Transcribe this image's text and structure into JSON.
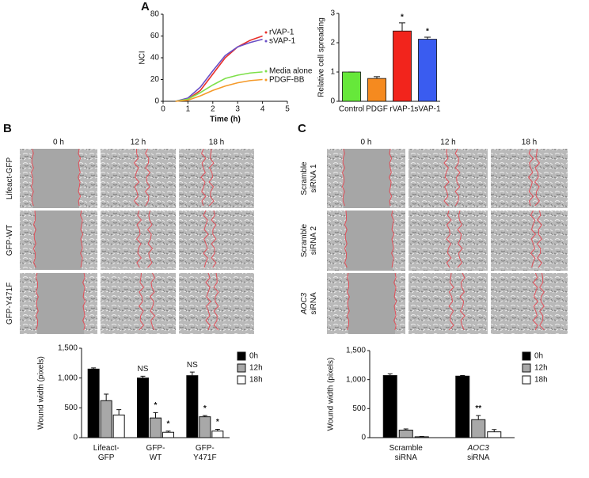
{
  "panel_labels": [
    "A",
    "B",
    "C"
  ],
  "micrographs": [
    {
      "columns": [
        "0 h",
        "12 h",
        "18 h"
      ],
      "rows": [
        [
          "Lifeact-GFP"
        ],
        [
          "GFP-WT"
        ],
        [
          "GFP-Y471F"
        ]
      ]
    },
    {
      "columns": [
        "0 h",
        "12 h",
        "18 h"
      ],
      "rows": [
        [
          "Scramble",
          "siRNA 1"
        ],
        [
          "Scramble",
          "siRNA 2"
        ],
        [
          "AOC3",
          "siRNA"
        ]
      ]
    }
  ],
  "chart_data": [
    {
      "type": "line",
      "xlabel": "Time (h)",
      "ylabel": "NCI",
      "x": [
        0.5,
        1,
        1.5,
        2,
        2.5,
        3,
        3.5,
        4
      ],
      "series": [
        {
          "name": "rVAP-1",
          "color": "#e8302a",
          "values": [
            0,
            2,
            10,
            25,
            40,
            50,
            56,
            60
          ]
        },
        {
          "name": "sVAP-1",
          "color": "#6a4fc6",
          "values": [
            0,
            3,
            13,
            28,
            42,
            50,
            54,
            57
          ]
        },
        {
          "name": "Media alone",
          "color": "#7ee04a",
          "values": [
            0,
            2,
            8,
            15,
            21,
            24,
            26,
            27
          ]
        },
        {
          "name": "PDGF-BB",
          "color": "#f59a2a",
          "values": [
            0,
            1,
            5,
            10,
            14,
            17,
            19,
            20
          ]
        }
      ],
      "xlim": [
        0,
        5
      ],
      "xticks": [
        0,
        1,
        2,
        3,
        4,
        5
      ],
      "ylim": [
        0,
        80
      ],
      "yticks": [
        0,
        20,
        40,
        60,
        80
      ]
    },
    {
      "type": "bar",
      "ylabel": "Relative cell spreading",
      "categories": [
        "Control",
        "PDGF",
        "rVAP-1",
        "sVAP-1"
      ],
      "values": [
        1.0,
        0.78,
        2.4,
        2.12
      ],
      "errors": [
        0,
        0.06,
        0.28,
        0.07
      ],
      "colors": [
        "#66e83a",
        "#f58a1f",
        "#f2241c",
        "#3a5cf0"
      ],
      "significance": [
        null,
        null,
        "*",
        "*"
      ],
      "ylim": [
        0,
        3
      ],
      "yticks": [
        0,
        1,
        2,
        3
      ]
    },
    {
      "type": "grouped-bar",
      "ylabel": "Wound width (pixels)",
      "categories": [
        [
          "Lifeact-",
          "GFP"
        ],
        [
          "GFP-",
          "WT"
        ],
        [
          "GFP-",
          "Y471F"
        ]
      ],
      "series": [
        {
          "name": "0h",
          "color": "#000000",
          "values": [
            1150,
            1000,
            1040
          ],
          "errors": [
            20,
            30,
            60
          ],
          "significance": [
            null,
            "NS",
            "NS"
          ]
        },
        {
          "name": "12h",
          "color": "#a8a8a8",
          "values": [
            620,
            330,
            350
          ],
          "errors": [
            110,
            90,
            20
          ],
          "significance": [
            null,
            "*",
            "*"
          ]
        },
        {
          "name": "18h",
          "color": "#ffffff",
          "values": [
            380,
            90,
            110
          ],
          "errors": [
            90,
            20,
            30
          ],
          "significance": [
            null,
            "*",
            "*"
          ]
        }
      ],
      "ylim": [
        0,
        1500
      ],
      "yticks": [
        0,
        500,
        {
          "value": 1000,
          "label": "1,000"
        },
        {
          "value": 1500,
          "label": "1,500"
        }
      ]
    },
    {
      "type": "grouped-bar",
      "ylabel": "Wound width (pixels)",
      "categories": [
        [
          "Scramble",
          "siRNA"
        ],
        [
          "AOC3",
          "siRNA"
        ]
      ],
      "series": [
        {
          "name": "0h",
          "color": "#000000",
          "values": [
            1070,
            1060
          ],
          "errors": [
            30,
            10
          ],
          "significance": [
            null,
            null
          ]
        },
        {
          "name": "12h",
          "color": "#a8a8a8",
          "values": [
            130,
            310
          ],
          "errors": [
            20,
            70
          ],
          "significance": [
            null,
            "**"
          ]
        },
        {
          "name": "18h",
          "color": "#ffffff",
          "values": [
            15,
            100
          ],
          "errors": [
            5,
            40
          ],
          "significance": [
            null,
            null
          ]
        }
      ],
      "ylim": [
        0,
        1500
      ],
      "yticks": [
        0,
        500,
        {
          "value": 1000,
          "label": "1,000"
        },
        {
          "value": 1500,
          "label": "1,500"
        }
      ]
    }
  ]
}
